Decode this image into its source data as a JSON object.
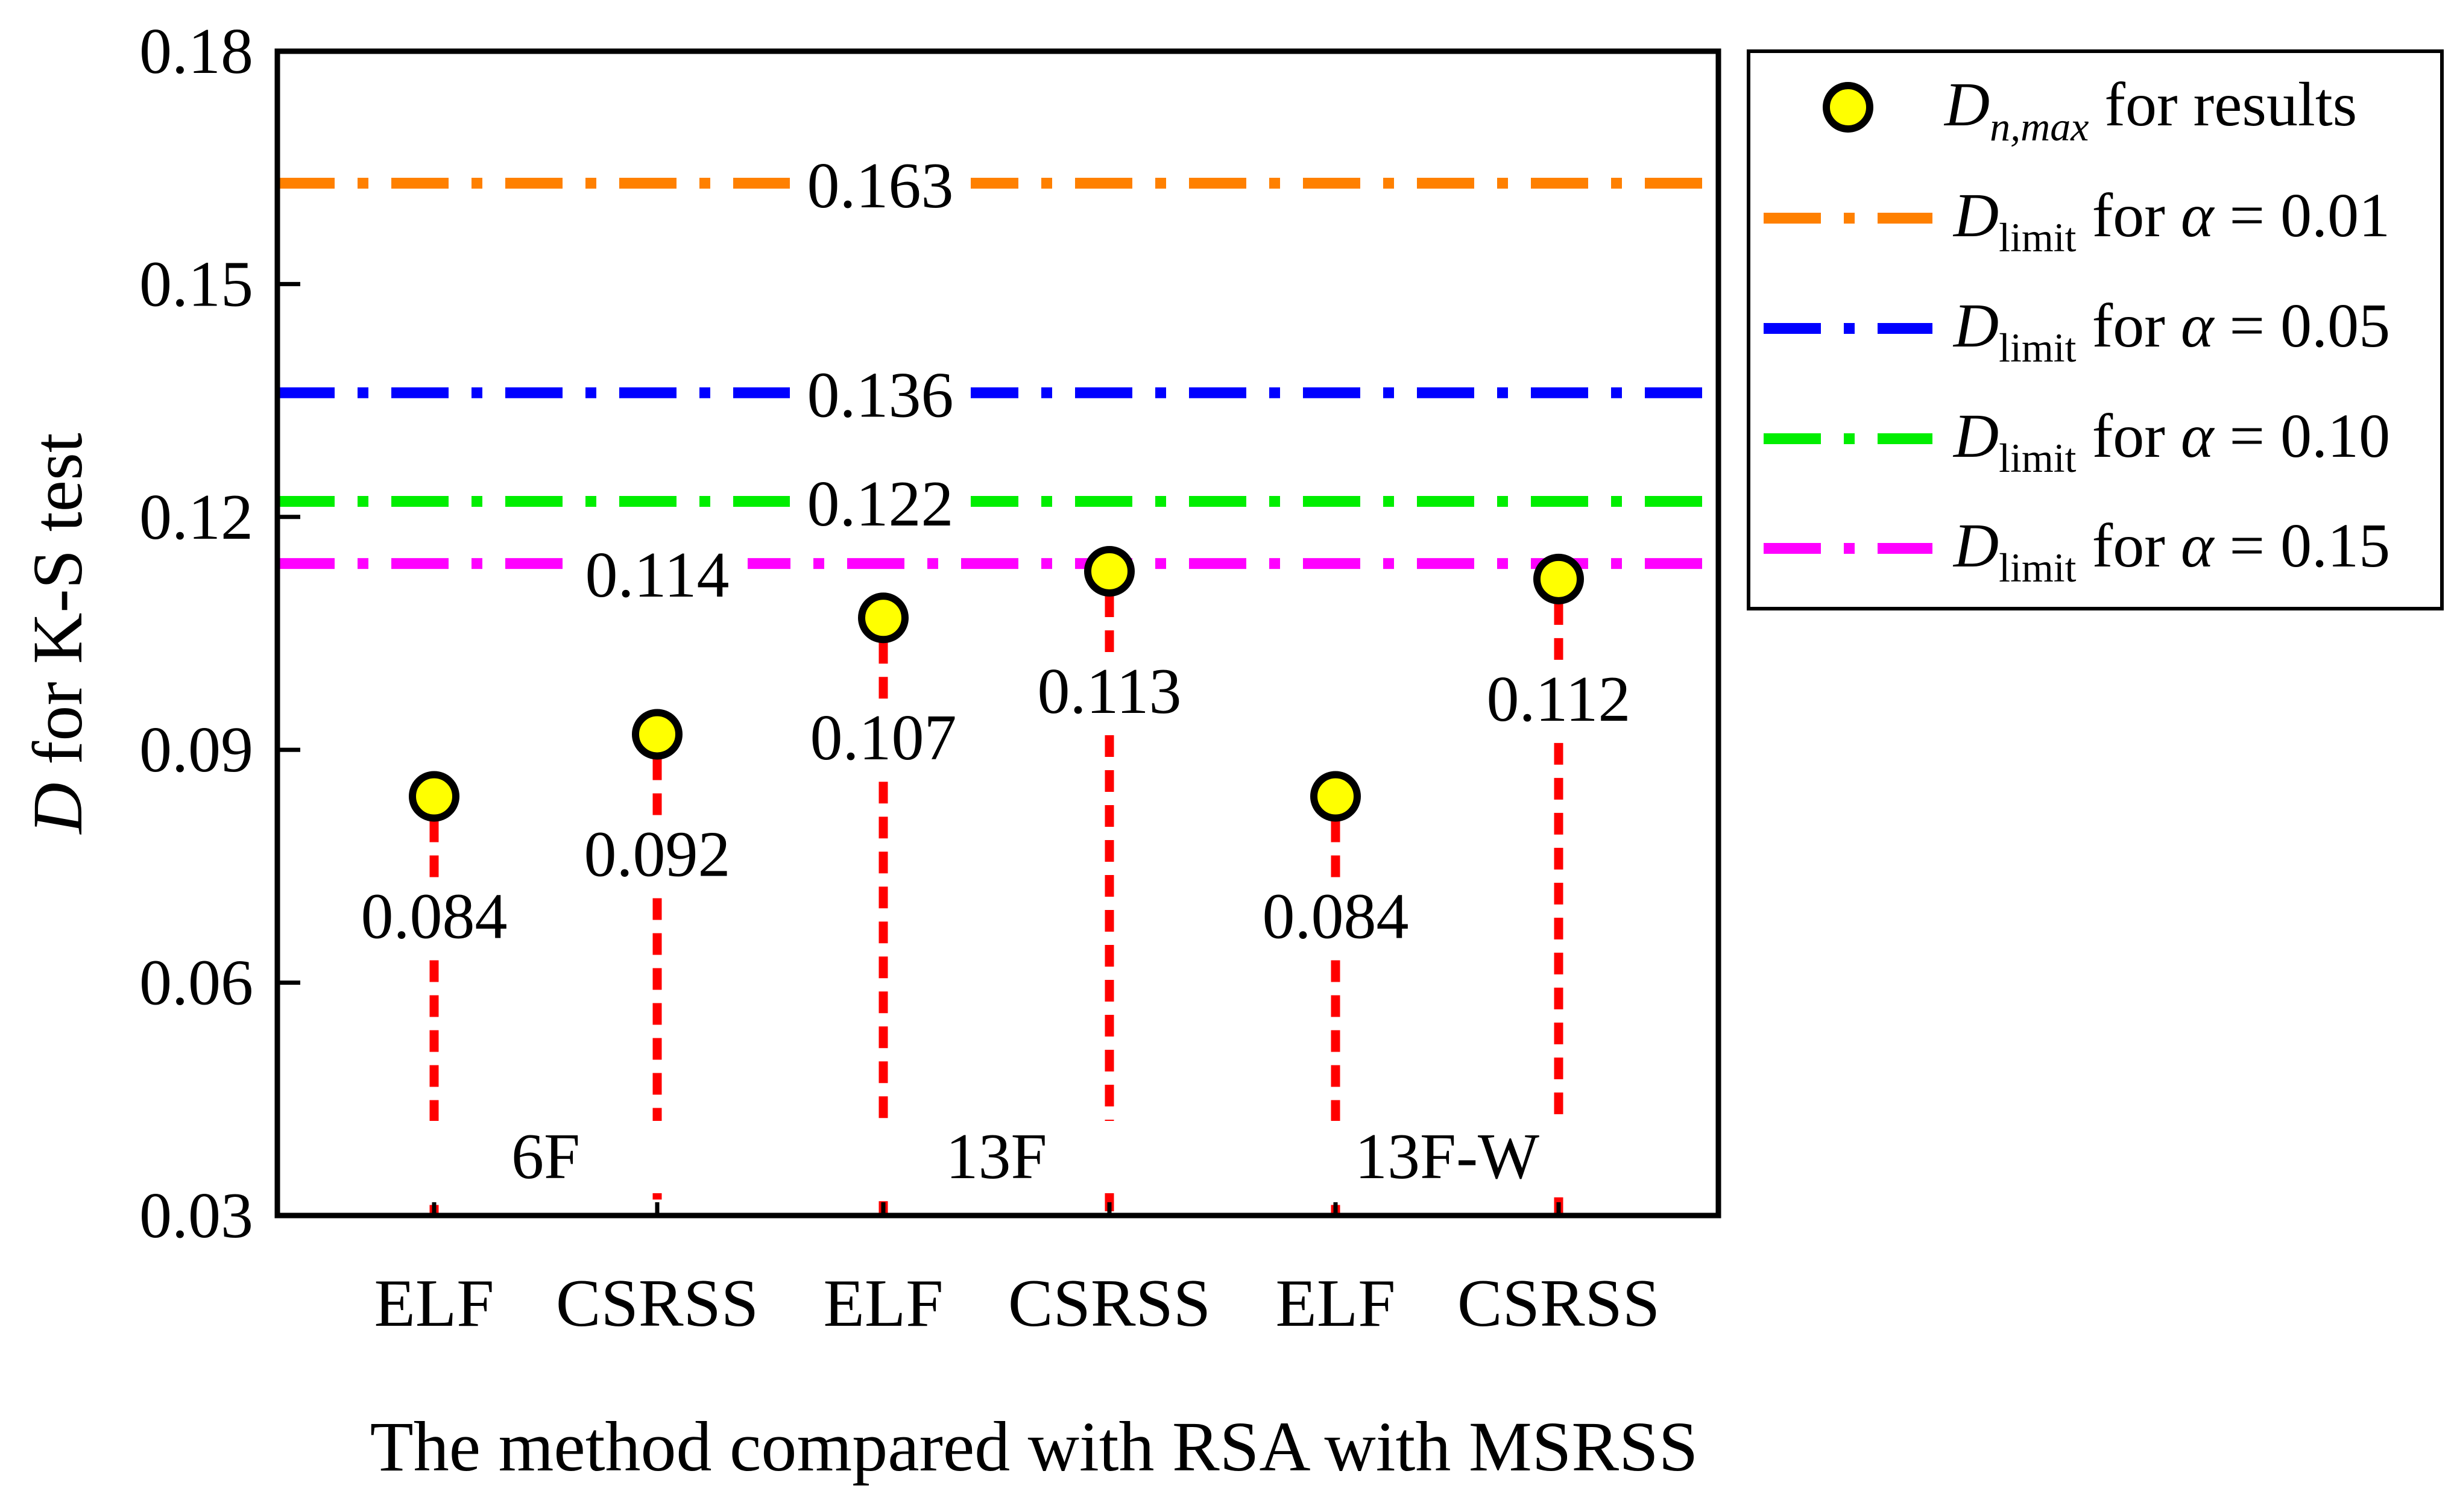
{
  "chart_data": {
    "type": "scatter",
    "title": "",
    "xlabel": "The method compared with RSA with MSRSS",
    "ylabel_italic": "D",
    "ylabel_rest": " for K-S test",
    "ylim": [
      0.03,
      0.18
    ],
    "yticks": [
      0.03,
      0.06,
      0.09,
      0.12,
      0.15,
      0.18
    ],
    "ytick_labels": [
      "0.03",
      "0.06",
      "0.09",
      "0.12",
      "0.15",
      "0.18"
    ],
    "categories": [
      "ELF",
      "CSRSS",
      "ELF",
      "CSRSS",
      "ELF",
      "CSRSS"
    ],
    "groups": [
      {
        "label": "6F",
        "members": [
          0,
          1
        ]
      },
      {
        "label": "13F",
        "members": [
          2,
          3
        ]
      },
      {
        "label": "13F-W",
        "members": [
          4,
          5
        ]
      }
    ],
    "series": [
      {
        "name": "Dn,max for results",
        "values": [
          0.084,
          0.092,
          0.107,
          0.113,
          0.084,
          0.112
        ],
        "value_labels": [
          "0.084",
          "0.092",
          "0.107",
          "0.113",
          "0.084",
          "0.112"
        ],
        "marker_color": "#ffff00",
        "stem_color": "#ff0000"
      }
    ],
    "thresholds": [
      {
        "alpha": "0.01",
        "value": 0.163,
        "label": "0.163",
        "color": "#ff8000"
      },
      {
        "alpha": "0.05",
        "value": 0.136,
        "label": "0.136",
        "color": "#0000ff"
      },
      {
        "alpha": "0.10",
        "value": 0.122,
        "label": "0.122",
        "color": "#00ee00"
      },
      {
        "alpha": "0.15",
        "value": 0.114,
        "label": "0.114",
        "color": "#ff00ff"
      }
    ],
    "legend": {
      "position": "top-right-outside",
      "results_main": "D",
      "results_sub": "n,max",
      "results_rest": " for results",
      "limit_main": "D",
      "limit_sub": "limit",
      "limit_for": " for ",
      "alpha_symbol": "α",
      "equals": " = "
    }
  }
}
